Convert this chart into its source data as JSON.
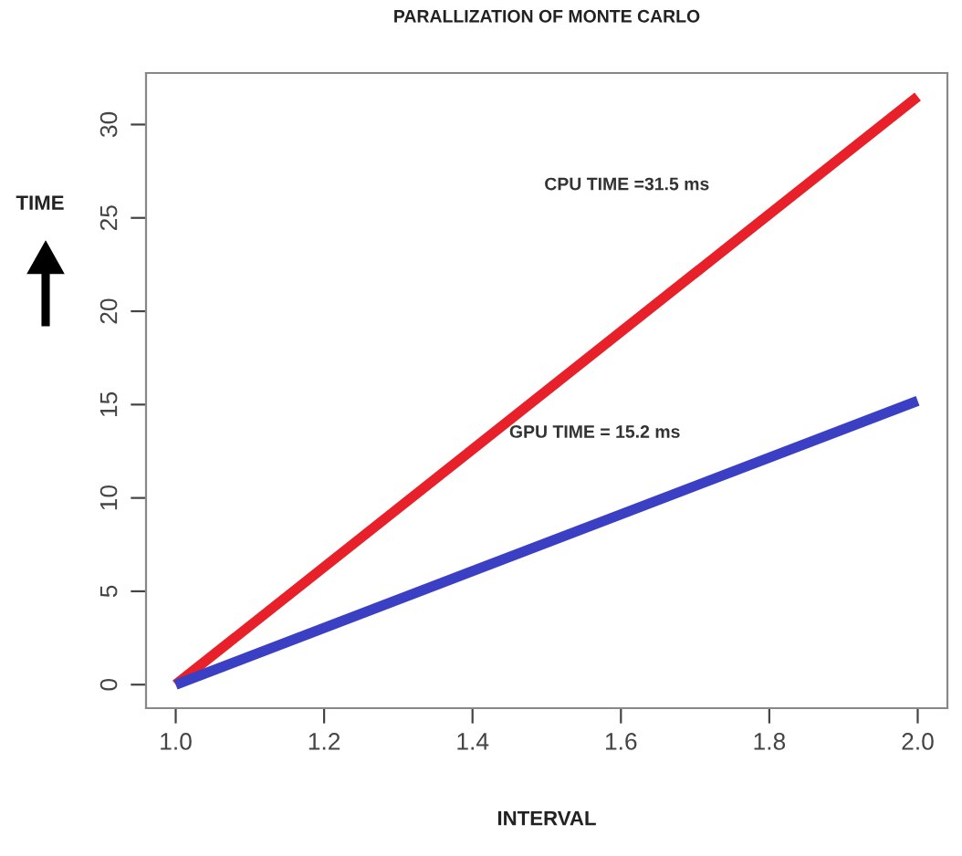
{
  "chart_data": {
    "type": "line",
    "title": "PARALLIZATION OF MONTE CARLO",
    "xlabel": "INTERVAL",
    "ylabel": "TIME",
    "x": [
      1.0,
      2.0
    ],
    "series": [
      {
        "color": "#e8202a",
        "values": [
          0,
          31.5
        ]
      },
      {
        "color": "#3a3fc4",
        "values": [
          0,
          15.2
        ]
      }
    ],
    "xlim": [
      0.96,
      2.04
    ],
    "ylim": [
      -1.26,
      32.76
    ],
    "xticks": [
      {
        "value": 1.0,
        "label": "1.0"
      },
      {
        "value": 1.2,
        "label": "1.2"
      },
      {
        "value": 1.4,
        "label": "1.4"
      },
      {
        "value": 1.6,
        "label": "1.6"
      },
      {
        "value": 1.8,
        "label": "1.8"
      },
      {
        "value": 2.0,
        "label": "2.0"
      }
    ],
    "yticks": [
      0,
      5,
      10,
      15,
      20,
      25,
      30
    ],
    "annotations": [
      "CPU TIME =31.5 ms",
      "GPU TIME = 15.2 ms"
    ],
    "grid": false,
    "legend": false,
    "marker": "none",
    "line_style": "solid"
  }
}
